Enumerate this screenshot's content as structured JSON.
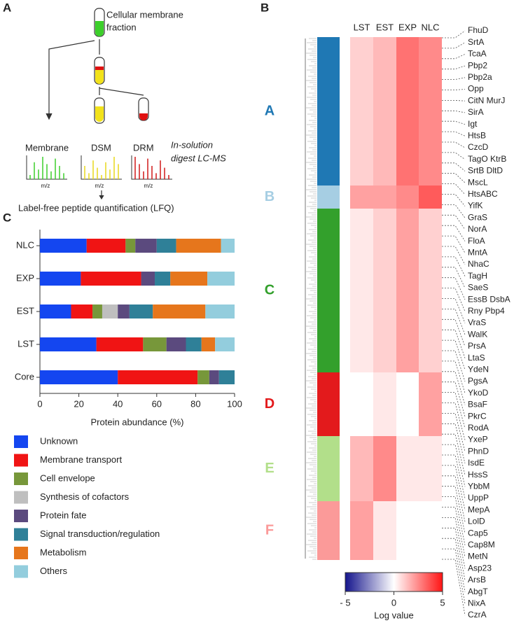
{
  "panel_a": {
    "letter": "A",
    "source": [
      "Cellular membrane",
      "fraction"
    ],
    "fractions": [
      "Membrane",
      "DSM",
      "DRM"
    ],
    "axis_label": "m/z",
    "method": [
      "In-solution",
      "digest LC-MS"
    ],
    "quantification": "Label-free peptide quantification (LFQ)"
  },
  "heatmap": {
    "letter": "B",
    "columns": [
      "LST",
      "EST",
      "EXP",
      "NLC"
    ],
    "clusters": [
      {
        "name": "A",
        "color": "#1f78b4",
        "values": [
          1,
          1.5,
          3,
          2.5
        ]
      },
      {
        "name": "B",
        "color": "#a6cee3",
        "values": [
          2,
          2,
          2.5,
          3.5
        ]
      },
      {
        "name": "C",
        "color": "#33a02c",
        "values": [
          0.5,
          1,
          2,
          1
        ]
      },
      {
        "name": "D",
        "color": "#e31a1c",
        "values": [
          0,
          0.5,
          0,
          2
        ]
      },
      {
        "name": "E",
        "color": "#b2df8a",
        "values": [
          1.5,
          2.5,
          0.5,
          0.5
        ]
      },
      {
        "name": "F",
        "color": "#fb9a99",
        "values": [
          2,
          0.5,
          0,
          0
        ]
      }
    ],
    "genes": [
      "FhuD",
      "SrtA",
      "TcaA",
      "Pbp2",
      "Pbp2a",
      "Opp",
      "CitN  MurJ",
      "SirA",
      "Igt",
      "HtsB",
      "CzcD",
      "TagO  KtrB",
      "SrtB  DltD",
      "MscL",
      "HtsABC",
      "YifK",
      "GraS",
      "NorA",
      "FloA",
      "MntA",
      "NhaC",
      "TagH",
      "SaeS",
      "EssB  DsbA",
      "Rny  Pbp4",
      "VraS",
      "WalK",
      "PrsA",
      "LtaS",
      "YdeN",
      "PgsA",
      "YkoD",
      "BsaF",
      "PkrC",
      "RodA",
      "YxeP",
      "PhnD",
      "IsdE",
      "HssS",
      "YbbM",
      "UppP",
      "MepA",
      "LolD",
      "Cap5",
      "Cap8M",
      "MetN",
      "Asp23",
      "ArsB",
      "AbgT",
      "NixA",
      "CzrA"
    ],
    "colorbar": {
      "lim": [
        -5,
        5
      ],
      "ticks": [
        {
          "value": -5,
          "label": "- 5"
        },
        0,
        5
      ],
      "label": "Log value"
    }
  },
  "chart_data": {
    "type": "stacked_barh",
    "letter": "C",
    "xlabel": "Protein abundance (%)",
    "categories": [
      "NLC",
      "EXP",
      "EST",
      "LST",
      "Core"
    ],
    "xlim": [
      0,
      100
    ],
    "xticks": [
      0,
      20,
      40,
      60,
      80,
      100
    ],
    "series": [
      {
        "name": "Unknown",
        "color": "#1446f0",
        "values": [
          24,
          21,
          16,
          29,
          40
        ]
      },
      {
        "name": "Membrane transport",
        "color": "#f01414",
        "values": [
          20,
          31,
          11,
          24,
          41
        ]
      },
      {
        "name": "Cell envelope",
        "color": "#77973a",
        "values": [
          5,
          0,
          5,
          12,
          6
        ]
      },
      {
        "name": "Synthesis of cofactors",
        "color": "#bfbfbf",
        "values": [
          0,
          0,
          8,
          0,
          0
        ]
      },
      {
        "name": "Protein fate",
        "color": "#5b4a7e",
        "values": [
          11,
          7,
          6,
          10,
          5
        ]
      },
      {
        "name": "Signal transduction/regulation",
        "color": "#2f8098",
        "values": [
          10,
          8,
          12,
          8,
          8
        ]
      },
      {
        "name": "Metabolism",
        "color": "#e6761c",
        "values": [
          23,
          19,
          27,
          7,
          0
        ]
      },
      {
        "name": "Others",
        "color": "#93cddd",
        "values": [
          7,
          14,
          15,
          10,
          0
        ]
      }
    ]
  }
}
